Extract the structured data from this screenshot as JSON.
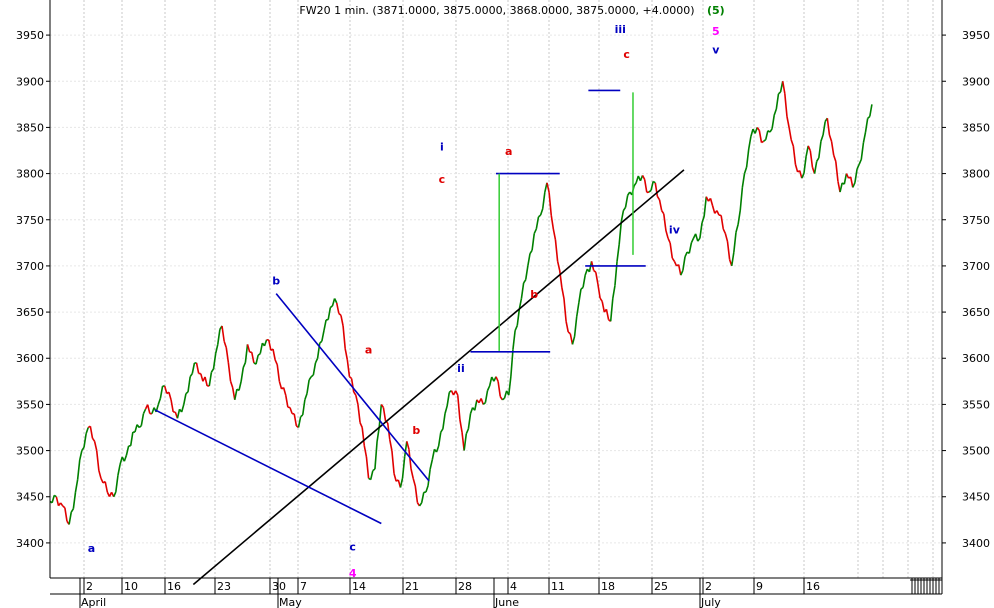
{
  "chart_data": {
    "type": "line",
    "title": "FW20 1 min. (3871.0000, 3875.0000, 3868.0000, 3875.0000, +4.0000)",
    "y_ticks": [
      3400,
      3450,
      3500,
      3550,
      3600,
      3650,
      3700,
      3750,
      3800,
      3850,
      3900,
      3950
    ],
    "ylim": [
      3362,
      3988
    ],
    "grid": true,
    "x_day_ticks": [
      "2",
      "10",
      "16",
      "23",
      "30",
      "7",
      "14",
      "21",
      "28",
      "4",
      "11",
      "18",
      "25",
      "2",
      "9",
      "16"
    ],
    "x_month_labels": [
      "April",
      "May",
      "June",
      "July"
    ],
    "up_color": "#008000",
    "down_color": "#e00000",
    "series": [
      {
        "points": [
          [
            0,
            3445
          ],
          [
            1,
            3450
          ],
          [
            2,
            3440
          ],
          [
            3,
            3420
          ],
          [
            4,
            3455
          ],
          [
            5,
            3500
          ],
          [
            6,
            3525
          ],
          [
            7,
            3510
          ],
          [
            8,
            3470
          ],
          [
            9,
            3455
          ],
          [
            10,
            3450
          ],
          [
            11,
            3485
          ],
          [
            12,
            3495
          ],
          [
            13,
            3520
          ],
          [
            14,
            3525
          ],
          [
            15,
            3545
          ],
          [
            16,
            3540
          ],
          [
            17,
            3550
          ],
          [
            18,
            3570
          ],
          [
            19,
            3555
          ],
          [
            20,
            3535
          ],
          [
            21,
            3550
          ],
          [
            22,
            3580
          ],
          [
            23,
            3595
          ],
          [
            24,
            3575
          ],
          [
            25,
            3570
          ],
          [
            26,
            3605
          ],
          [
            27,
            3635
          ],
          [
            28,
            3595
          ],
          [
            29,
            3555
          ],
          [
            30,
            3575
          ],
          [
            31,
            3615
          ],
          [
            32,
            3595
          ],
          [
            33,
            3605
          ],
          [
            34,
            3620
          ],
          [
            35,
            3610
          ],
          [
            36,
            3575
          ],
          [
            37,
            3560
          ],
          [
            38,
            3540
          ],
          [
            39,
            3525
          ],
          [
            40,
            3555
          ],
          [
            41,
            3580
          ],
          [
            42,
            3600
          ],
          [
            43,
            3630
          ],
          [
            44,
            3655
          ],
          [
            45,
            3660
          ],
          [
            46,
            3635
          ],
          [
            47,
            3580
          ],
          [
            48,
            3560
          ],
          [
            49,
            3525
          ],
          [
            50,
            3470
          ],
          [
            51,
            3480
          ],
          [
            52,
            3550
          ],
          [
            53,
            3530
          ],
          [
            54,
            3475
          ],
          [
            55,
            3460
          ],
          [
            56,
            3510
          ],
          [
            57,
            3470
          ],
          [
            58,
            3440
          ],
          [
            59,
            3455
          ],
          [
            60,
            3490
          ],
          [
            61,
            3505
          ],
          [
            62,
            3540
          ],
          [
            63,
            3565
          ],
          [
            64,
            3560
          ],
          [
            65,
            3500
          ],
          [
            66,
            3540
          ],
          [
            67,
            3555
          ],
          [
            68,
            3550
          ],
          [
            69,
            3570
          ],
          [
            70,
            3580
          ],
          [
            71,
            3555
          ],
          [
            72,
            3560
          ],
          [
            73,
            3630
          ],
          [
            74,
            3665
          ],
          [
            75,
            3700
          ],
          [
            76,
            3735
          ],
          [
            77,
            3755
          ],
          [
            78,
            3790
          ],
          [
            79,
            3740
          ],
          [
            80,
            3695
          ],
          [
            81,
            3640
          ],
          [
            82,
            3615
          ],
          [
            83,
            3660
          ],
          [
            84,
            3690
          ],
          [
            85,
            3705
          ],
          [
            86,
            3680
          ],
          [
            87,
            3650
          ],
          [
            88,
            3640
          ],
          [
            89,
            3705
          ],
          [
            90,
            3760
          ],
          [
            91,
            3780
          ],
          [
            92,
            3790
          ],
          [
            93,
            3798
          ],
          [
            94,
            3780
          ],
          [
            95,
            3790
          ],
          [
            96,
            3760
          ],
          [
            97,
            3730
          ],
          [
            98,
            3705
          ],
          [
            99,
            3690
          ],
          [
            100,
            3715
          ],
          [
            101,
            3730
          ],
          [
            102,
            3730
          ],
          [
            103,
            3775
          ],
          [
            104,
            3765
          ],
          [
            105,
            3755
          ],
          [
            106,
            3735
          ],
          [
            107,
            3700
          ],
          [
            108,
            3745
          ],
          [
            109,
            3800
          ],
          [
            110,
            3840
          ],
          [
            111,
            3850
          ],
          [
            112,
            3835
          ],
          [
            113,
            3845
          ],
          [
            114,
            3870
          ],
          [
            115,
            3900
          ],
          [
            116,
            3850
          ],
          [
            117,
            3810
          ],
          [
            118,
            3795
          ],
          [
            119,
            3830
          ],
          [
            120,
            3800
          ],
          [
            121,
            3835
          ],
          [
            122,
            3860
          ],
          [
            123,
            3820
          ],
          [
            124,
            3780
          ],
          [
            125,
            3800
          ],
          [
            126,
            3785
          ],
          [
            127,
            3810
          ],
          [
            128,
            3845
          ],
          [
            129,
            3875
          ]
        ]
      }
    ],
    "x_points_total": 140,
    "trendlines": [
      {
        "color": "#000000",
        "from": [
          22.5,
          3355
        ],
        "to": [
          99.5,
          3804
        ]
      },
      {
        "color": "#0000c0",
        "from": [
          16.5,
          3544
        ],
        "to": [
          52,
          3421
        ]
      },
      {
        "color": "#0000c0",
        "from": [
          35.5,
          3670
        ],
        "to": [
          59.5,
          3467
        ]
      },
      {
        "color": "#0000c0",
        "from": [
          66,
          3607
        ],
        "to": [
          78.5,
          3607
        ]
      },
      {
        "color": "#0000c0",
        "from": [
          70,
          3800
        ],
        "to": [
          80,
          3800
        ]
      },
      {
        "color": "#0000c0",
        "from": [
          84,
          3700
        ],
        "to": [
          93.5,
          3700
        ]
      },
      {
        "color": "#0000c0",
        "from": [
          84.5,
          3890
        ],
        "to": [
          89.5,
          3890
        ]
      },
      {
        "color": "#33cc33",
        "from": [
          70.5,
          3608
        ],
        "to": [
          70.5,
          3800
        ]
      },
      {
        "color": "#33cc33",
        "from": [
          91.5,
          3712
        ],
        "to": [
          91.5,
          3888
        ]
      }
    ],
    "annotations": [
      {
        "text": "(5)",
        "x": 104.5,
        "y": 3973,
        "color": "#008000"
      },
      {
        "text": "5",
        "x": 104.5,
        "y": 3950,
        "color": "#ff00ff"
      },
      {
        "text": "v",
        "x": 104.5,
        "y": 3930,
        "color": "#0000c0"
      },
      {
        "text": "iii",
        "x": 89.5,
        "y": 3952,
        "color": "#0000c0"
      },
      {
        "text": "c",
        "x": 90.5,
        "y": 3925,
        "color": "#e00000"
      },
      {
        "text": "i",
        "x": 61.5,
        "y": 3825,
        "color": "#0000c0"
      },
      {
        "text": "c",
        "x": 61.5,
        "y": 3790,
        "color": "#e00000"
      },
      {
        "text": "a",
        "x": 72,
        "y": 3820,
        "color": "#e00000"
      },
      {
        "text": "b",
        "x": 76,
        "y": 3665,
        "color": "#e00000"
      },
      {
        "text": "ii",
        "x": 64.5,
        "y": 3585,
        "color": "#0000c0"
      },
      {
        "text": "iv",
        "x": 98,
        "y": 3735,
        "color": "#0000c0"
      },
      {
        "text": "b",
        "x": 35.5,
        "y": 3680,
        "color": "#0000c0"
      },
      {
        "text": "a",
        "x": 50,
        "y": 3605,
        "color": "#e00000"
      },
      {
        "text": "b",
        "x": 57.5,
        "y": 3518,
        "color": "#e00000"
      },
      {
        "text": "a",
        "x": 6.5,
        "y": 3390,
        "color": "#0000c0"
      },
      {
        "text": "c",
        "x": 47.5,
        "y": 3392,
        "color": "#0000c0"
      },
      {
        "text": "4",
        "x": 47.5,
        "y": 3363,
        "color": "#ff00ff"
      }
    ]
  }
}
